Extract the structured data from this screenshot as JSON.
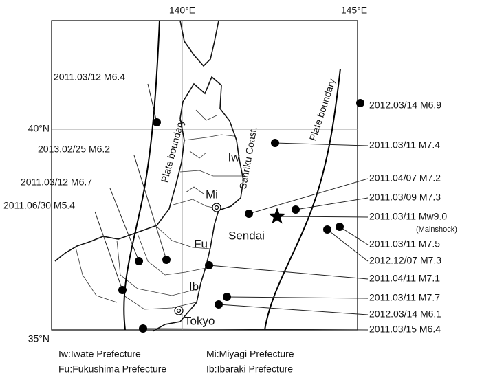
{
  "map": {
    "longitude_labels": [
      "140°E",
      "145°E"
    ],
    "latitude_labels": [
      "40°N",
      "35°N"
    ],
    "plate_boundary_labels": [
      "Plate boundary",
      "Plate boundary"
    ],
    "coast_label": "Sanriku Coast.",
    "prefectures": [
      "Iw",
      "Mi",
      "Fu",
      "Ib"
    ],
    "cities": [
      "Sendai",
      "Tokyo"
    ],
    "events": [
      {
        "label": "2011.03/12 M6.4"
      },
      {
        "label": "2012.03/14 M6.9"
      },
      {
        "label": "2011.03/11 M7.4"
      },
      {
        "label": "2013.02/25 M6.2"
      },
      {
        "label": "2011.03/12 M6.7"
      },
      {
        "label": "2011.06/30 M5.4"
      },
      {
        "label": "2011.04/07 M7.2"
      },
      {
        "label": "2011.03/09 M7.3"
      },
      {
        "label": "2011.03/11 Mw9.0",
        "note": "(Mainshock)"
      },
      {
        "label": "2011.03/11 M7.5"
      },
      {
        "label": "2012.12/07 M7.3"
      },
      {
        "label": "2011.04/11 M7.1"
      },
      {
        "label": "2011.03/11 M7.7"
      },
      {
        "label": "2012.03/14 M6.1"
      },
      {
        "label": "2011.03/15 M6.4"
      }
    ],
    "legend": [
      "Iw:Iwate Prefecture",
      "Mi:Miyagi Prefecture",
      "Fu:Fukushima Prefecture",
      "Ib:Ibaraki Prefecture"
    ]
  }
}
